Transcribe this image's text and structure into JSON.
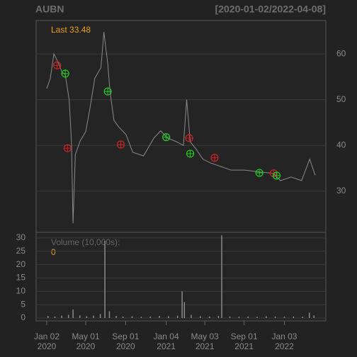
{
  "chart_data": [
    {
      "type": "line",
      "title": "AUBN",
      "subtitle": "[2020-01-02/2022-04-08]",
      "annotation": "Last 33.48",
      "xlim": [
        "2020-01-02",
        "2022-04-08"
      ],
      "ylim": [
        21,
        67.3
      ],
      "yticks": [
        30,
        40,
        50,
        60
      ],
      "grid": true,
      "series": [
        {
          "color": "#8a8a8a",
          "x": [
            "2020-01-02",
            "2020-01-13",
            "2020-01-24",
            "2020-02-07",
            "2020-02-18",
            "2020-02-28",
            "2020-03-11",
            "2020-03-18",
            "2020-03-23",
            "2020-03-30",
            "2020-04-14",
            "2020-05-01",
            "2020-05-15",
            "2020-05-29",
            "2020-06-17",
            "2020-06-26",
            "2020-07-08",
            "2020-07-15",
            "2020-07-27",
            "2020-08-11",
            "2020-09-02",
            "2020-09-23",
            "2020-10-26",
            "2020-11-27",
            "2020-12-18",
            "2021-01-08",
            "2021-02-05",
            "2021-02-26",
            "2021-03-08",
            "2021-03-19",
            "2021-04-05",
            "2021-04-27",
            "2021-05-19",
            "2021-06-21",
            "2021-07-23",
            "2021-09-03",
            "2021-10-18",
            "2021-12-01",
            "2021-12-22",
            "2022-01-24",
            "2022-02-25",
            "2022-03-22",
            "2022-04-08"
          ],
          "values": [
            52.4,
            54.7,
            60.0,
            58.0,
            56.0,
            55.5,
            50.0,
            41.0,
            23.0,
            38.0,
            41.0,
            43.0,
            48.5,
            54.7,
            57.0,
            64.8,
            57.8,
            51.7,
            45.5,
            44.0,
            42.4,
            38.5,
            37.7,
            41.6,
            43.2,
            41.6,
            40.8,
            40.0,
            50.0,
            40.8,
            39.3,
            37.0,
            36.2,
            35.4,
            34.6,
            34.6,
            34.2,
            33.9,
            32.3,
            33.1,
            32.3,
            37.0,
            33.48
          ]
        }
      ],
      "markers": [
        {
          "color": "#cc2222",
          "x": [
            "2020-02-03",
            "2020-03-06",
            "2020-08-17",
            "2021-03-16",
            "2021-06-02",
            "2021-12-01"
          ],
          "values": [
            57.5,
            39.4,
            40.2,
            41.6,
            37.3,
            33.9
          ]
        },
        {
          "color": "#22cc22",
          "x": [
            "2020-02-28",
            "2020-07-08",
            "2021-01-04",
            "2021-03-19",
            "2021-10-18",
            "2021-12-10"
          ],
          "values": [
            55.7,
            51.8,
            41.8,
            38.2,
            34.0,
            33.4
          ]
        }
      ]
    },
    {
      "type": "bar",
      "title": "Volume (10,000s):",
      "annotation": "0",
      "xlim": [
        "2020-01-02",
        "2022-04-08"
      ],
      "ylim": [
        -1.06,
        32.1
      ],
      "yticks": [
        0,
        5,
        10,
        15,
        20,
        25,
        30
      ],
      "grid": true,
      "xticks": [
        {
          "value": "2020-01-02",
          "label": [
            "Jan 02",
            "2020"
          ]
        },
        {
          "value": "2020-05-01",
          "label": [
            "May 01",
            "2020"
          ]
        },
        {
          "value": "2020-09-01",
          "label": [
            "Sep 01",
            "2020"
          ]
        },
        {
          "value": "2021-01-04",
          "label": [
            "Jan 04",
            "2021"
          ]
        },
        {
          "value": "2021-05-03",
          "label": [
            "May 03",
            "2021"
          ]
        },
        {
          "value": "2021-09-01",
          "label": [
            "Sep 01",
            "2021"
          ]
        },
        {
          "value": "2022-01-03",
          "label": [
            "Jan 03",
            "2022"
          ]
        }
      ],
      "series": [
        {
          "color": "#8a8a8a",
          "x": [
            "2020-01-06",
            "2020-01-27",
            "2020-02-17",
            "2020-03-09",
            "2020-03-23",
            "2020-04-13",
            "2020-05-04",
            "2020-05-25",
            "2020-06-15",
            "2020-06-29",
            "2020-07-13",
            "2020-08-03",
            "2020-08-24",
            "2020-09-21",
            "2020-10-19",
            "2020-11-16",
            "2020-12-14",
            "2021-01-11",
            "2021-02-08",
            "2021-02-22",
            "2021-03-01",
            "2021-03-22",
            "2021-04-19",
            "2021-05-17",
            "2021-06-14",
            "2021-06-24",
            "2021-07-19",
            "2021-08-16",
            "2021-09-13",
            "2021-10-11",
            "2021-11-08",
            "2021-12-06",
            "2022-01-03",
            "2022-01-31",
            "2022-02-28",
            "2022-03-21",
            "2022-04-04"
          ],
          "values": [
            0.8,
            0.6,
            0.9,
            1.2,
            3.2,
            1.0,
            0.7,
            0.9,
            1.5,
            28.9,
            2.5,
            0.8,
            0.6,
            0.7,
            0.5,
            0.6,
            0.8,
            0.7,
            0.9,
            10.0,
            6.0,
            1.2,
            0.7,
            0.6,
            0.8,
            31.0,
            0.6,
            0.5,
            0.6,
            0.5,
            0.7,
            0.6,
            0.5,
            0.6,
            0.5,
            2.0,
            1.0
          ]
        }
      ]
    }
  ]
}
